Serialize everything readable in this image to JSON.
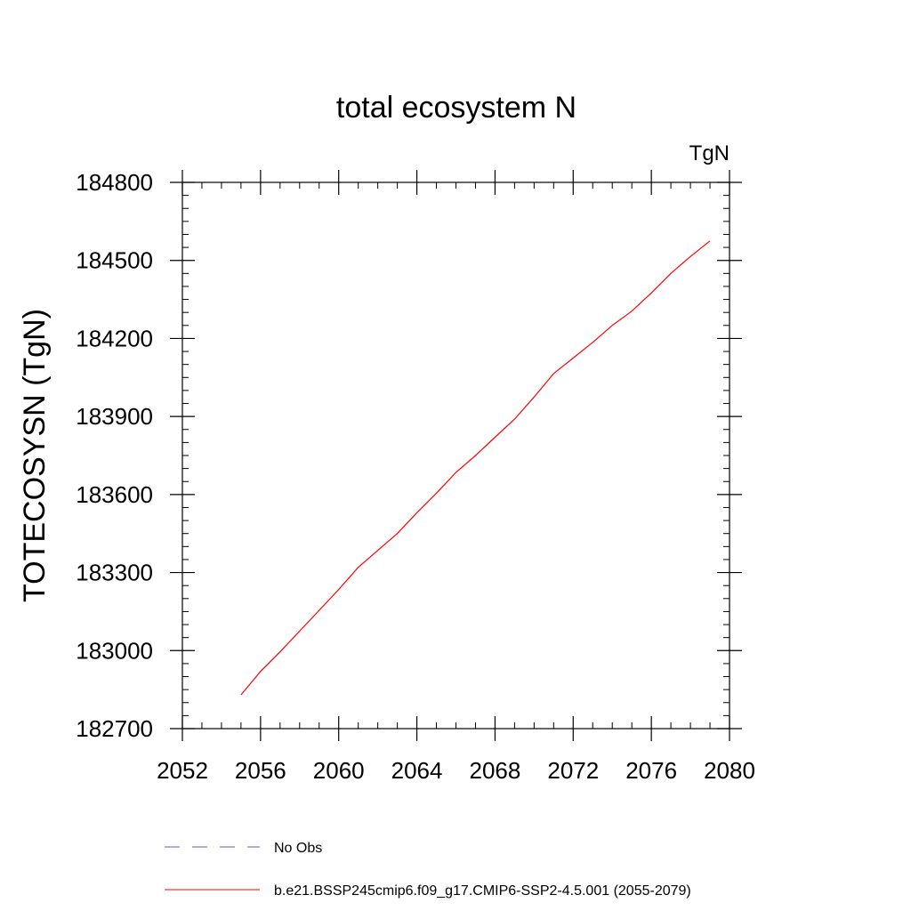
{
  "chart_data": {
    "type": "line",
    "title": "total ecosystem N",
    "units_label": "TgN",
    "xlabel": "",
    "ylabel": "TOTECOSYSN  (TgN)",
    "xlim": [
      2052,
      2080
    ],
    "ylim": [
      182700,
      184800
    ],
    "xticks": [
      2052,
      2056,
      2060,
      2064,
      2068,
      2072,
      2076,
      2080
    ],
    "yticks": [
      182700,
      183000,
      183300,
      183600,
      183900,
      184200,
      184500,
      184800
    ],
    "x_minor_step": 1,
    "y_minor_step": 50,
    "grid": false,
    "legend_position": "bottom",
    "series": [
      {
        "name": "b.e21.BSSP245cmip6.f09_g17.CMIP6-SSP2-4.5.001 (2055-2079)",
        "color": "#ff0000",
        "style": "solid",
        "x": [
          2055,
          2056,
          2057,
          2058,
          2059,
          2060,
          2061,
          2062,
          2063,
          2064,
          2065,
          2066,
          2067,
          2068,
          2069,
          2070,
          2071,
          2072,
          2073,
          2074,
          2075,
          2076,
          2077,
          2078,
          2079
        ],
        "y": [
          182830,
          182920,
          182995,
          183075,
          183155,
          183235,
          183320,
          183385,
          183450,
          183530,
          183605,
          183685,
          183750,
          183820,
          183890,
          183975,
          184065,
          184125,
          184185,
          184250,
          184305,
          184375,
          184450,
          184515,
          184575
        ]
      }
    ],
    "legend": [
      {
        "label": "No Obs",
        "color": "#6a5acd",
        "style": "dashed"
      },
      {
        "label": "b.e21.BSSP245cmip6.f09_g17.CMIP6-SSP2-4.5.001 (2055-2079)",
        "color": "#ff0000",
        "style": "solid"
      }
    ]
  }
}
